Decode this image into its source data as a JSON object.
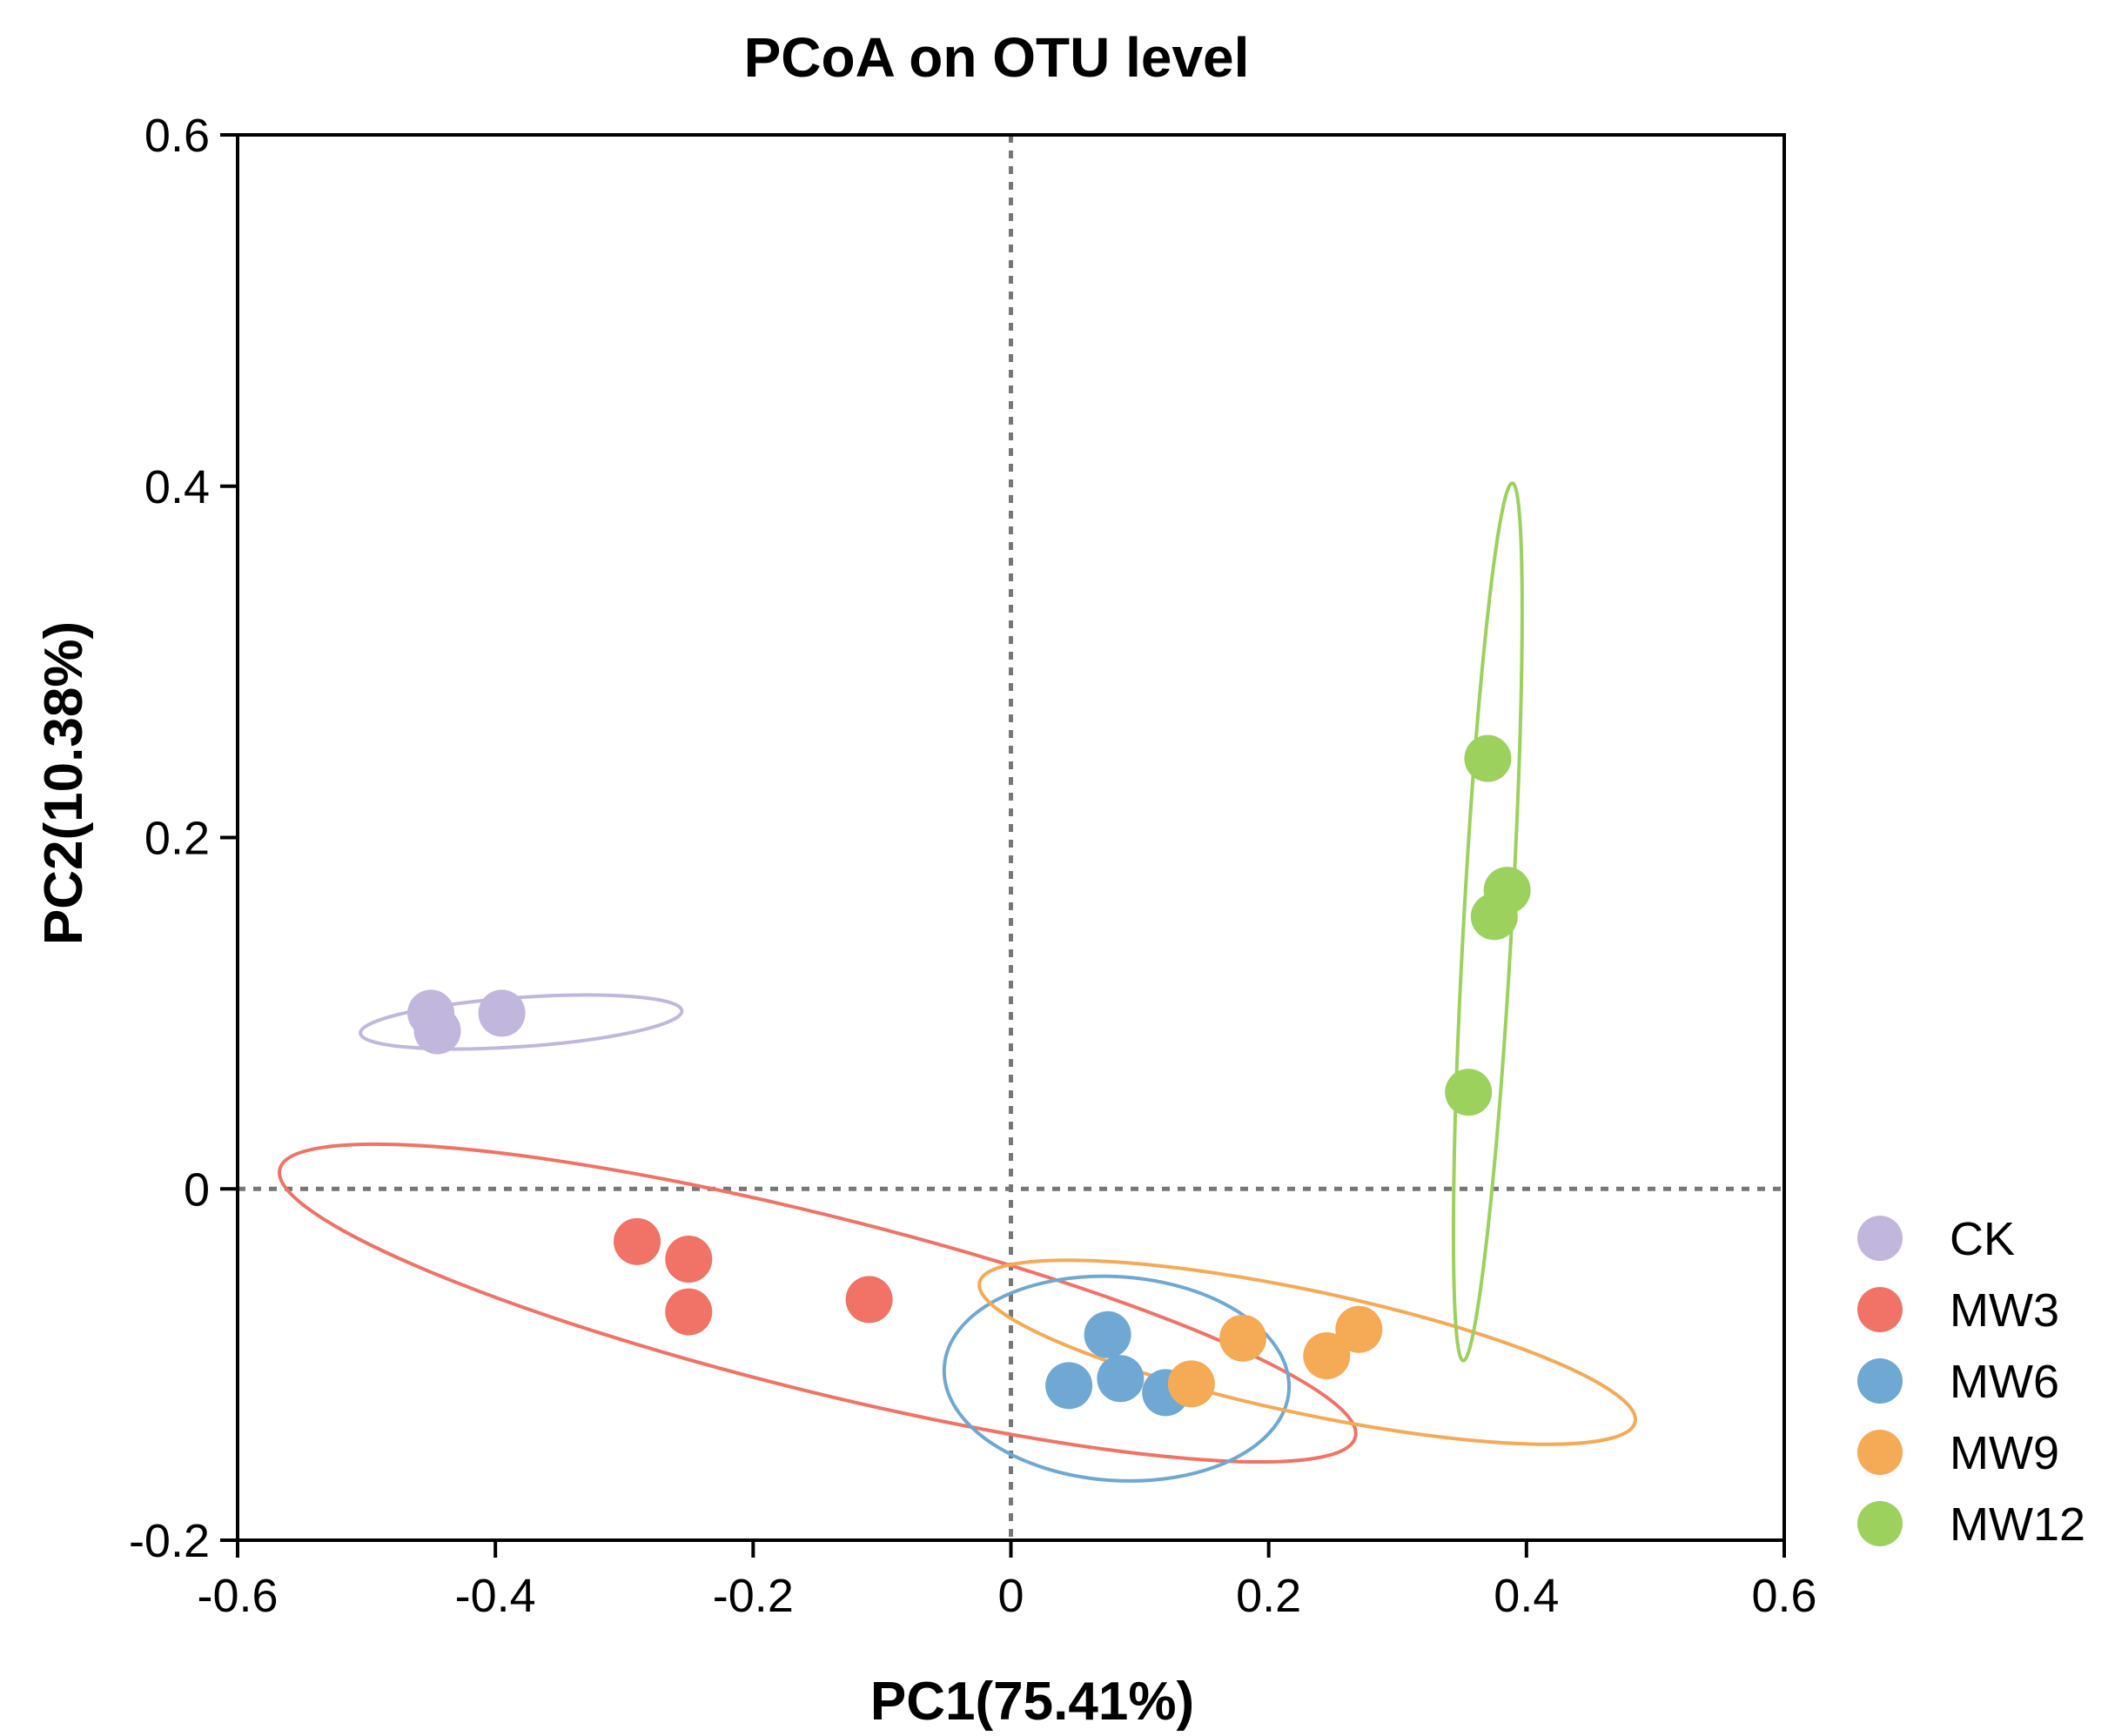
{
  "chart_data": {
    "type": "scatter",
    "title": "PCoA on OTU level",
    "xlabel": "PC1(75.41%)",
    "ylabel": "PC2(10.38%)",
    "xlim": [
      -0.6,
      0.6
    ],
    "ylim": [
      -0.2,
      0.6
    ],
    "xticks": [
      -0.6,
      -0.4,
      -0.2,
      0,
      0.2,
      0.4,
      0.6
    ],
    "yticks": [
      -0.2,
      0,
      0.2,
      0.4,
      0.6
    ],
    "xtick_labels": [
      "-0.6",
      "-0.4",
      "-0.2",
      "0",
      "0.2",
      "0.4",
      "0.6"
    ],
    "ytick_labels": [
      "-0.2",
      "0",
      "0.2",
      "0.4",
      "0.6"
    ],
    "reference_lines": {
      "x": 0,
      "y": 0,
      "style": "dotted"
    },
    "grid": false,
    "legend_position": "right",
    "series": [
      {
        "name": "CK",
        "color": "#c1b6dc",
        "points": [
          [
            -0.45,
            0.1
          ],
          [
            -0.445,
            0.09
          ],
          [
            -0.395,
            0.1
          ]
        ],
        "ellipse": {
          "cx": -0.38,
          "cy": 0.095,
          "rx": 0.125,
          "ry": 0.014,
          "angle": 4
        }
      },
      {
        "name": "MW3",
        "color": "#f17266",
        "points": [
          [
            -0.29,
            -0.03
          ],
          [
            -0.25,
            -0.04
          ],
          [
            -0.25,
            -0.07
          ],
          [
            -0.11,
            -0.063
          ]
        ],
        "ellipse": {
          "cx": -0.15,
          "cy": -0.065,
          "rx": 0.43,
          "ry": 0.05,
          "angle": -14
        }
      },
      {
        "name": "MW6",
        "color": "#6fa8d2",
        "points": [
          [
            0.075,
            -0.083
          ],
          [
            0.045,
            -0.112
          ],
          [
            0.085,
            -0.108
          ],
          [
            0.12,
            -0.116
          ]
        ],
        "ellipse": {
          "cx": 0.082,
          "cy": -0.108,
          "rx": 0.134,
          "ry": 0.058,
          "angle": -4
        }
      },
      {
        "name": "MW9",
        "color": "#f5aa56",
        "points": [
          [
            0.14,
            -0.111
          ],
          [
            0.18,
            -0.085
          ],
          [
            0.245,
            -0.095
          ],
          [
            0.27,
            -0.08
          ]
        ],
        "ellipse": {
          "cx": 0.23,
          "cy": -0.093,
          "rx": 0.26,
          "ry": 0.035,
          "angle": -12
        }
      },
      {
        "name": "MW12",
        "color": "#9bd15c",
        "points": [
          [
            0.37,
            0.245
          ],
          [
            0.385,
            0.17
          ],
          [
            0.375,
            0.155
          ],
          [
            0.355,
            0.055
          ]
        ],
        "ellipse": {
          "cx": 0.37,
          "cy": 0.152,
          "rx": 0.341,
          "ry": 0.0137,
          "angle": 86.8
        }
      }
    ]
  }
}
